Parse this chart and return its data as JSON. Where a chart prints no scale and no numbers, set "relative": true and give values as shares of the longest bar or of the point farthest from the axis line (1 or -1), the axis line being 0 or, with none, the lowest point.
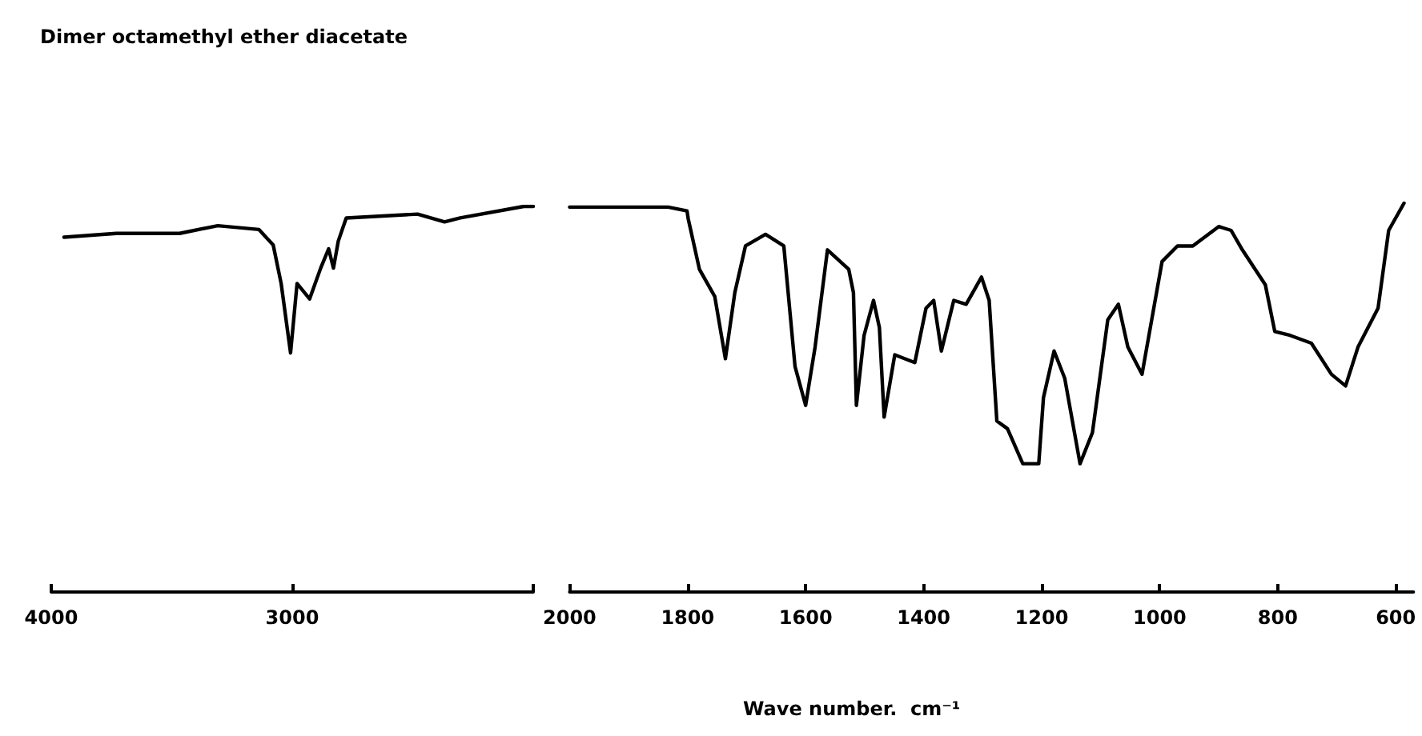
{
  "chart_data": [
    {
      "type": "line",
      "title": "Dimer octamethyl ether diacetate",
      "relative": true,
      "xlim": [
        4000,
        2000
      ],
      "xticks": [
        4000,
        3000,
        {
          "value": 2000,
          "label": null
        }
      ],
      "x": [
        3947,
        3730,
        3467,
        3309,
        3138,
        3079,
        3046,
        3007,
        2980,
        2928,
        2882,
        2849,
        2829,
        2809,
        2776,
        2480,
        2368,
        2303,
        2039,
        2000
      ],
      "series": [
        {
          "color": "#000000",
          "values": [
            0.92,
            0.93,
            0.93,
            0.95,
            0.94,
            0.9,
            0.8,
            0.62,
            0.8,
            0.76,
            0.84,
            0.89,
            0.84,
            0.91,
            0.97,
            0.98,
            0.96,
            0.97,
            1.0,
            1.0
          ]
        }
      ]
    },
    {
      "type": "line",
      "xlabel": "Wave number.  cm⁻¹",
      "relative": true,
      "xlim": [
        2000,
        570
      ],
      "xticks": [
        2000,
        1800,
        1600,
        1400,
        1200,
        1000,
        800,
        600
      ],
      "x": [
        2000,
        1833,
        1801,
        1799,
        1780,
        1754,
        1736,
        1720,
        1702,
        1668,
        1637,
        1618,
        1600,
        1584,
        1563,
        1527,
        1519,
        1514,
        1501,
        1485,
        1475,
        1467,
        1449,
        1415,
        1396,
        1383,
        1370,
        1349,
        1328,
        1302,
        1289,
        1276,
        1258,
        1232,
        1205,
        1197,
        1179,
        1161,
        1135,
        1114,
        1088,
        1070,
        1054,
        1030,
        996,
        970,
        944,
        900,
        879,
        860,
        821,
        805,
        779,
        743,
        709,
        685,
        664,
        630,
        612,
        586
      ],
      "series": [
        {
          "color": "#000000",
          "values": [
            0.99,
            0.99,
            0.98,
            0.96,
            0.83,
            0.76,
            0.6,
            0.77,
            0.89,
            0.92,
            0.89,
            0.58,
            0.48,
            0.63,
            0.88,
            0.83,
            0.77,
            0.48,
            0.66,
            0.75,
            0.68,
            0.45,
            0.61,
            0.59,
            0.73,
            0.75,
            0.62,
            0.75,
            0.74,
            0.81,
            0.75,
            0.44,
            0.42,
            0.33,
            0.33,
            0.5,
            0.62,
            0.55,
            0.33,
            0.41,
            0.7,
            0.74,
            0.63,
            0.56,
            0.85,
            0.89,
            0.89,
            0.94,
            0.93,
            0.88,
            0.79,
            0.67,
            0.66,
            0.64,
            0.56,
            0.53,
            0.63,
            0.73,
            0.93,
            1.0
          ]
        }
      ]
    }
  ]
}
